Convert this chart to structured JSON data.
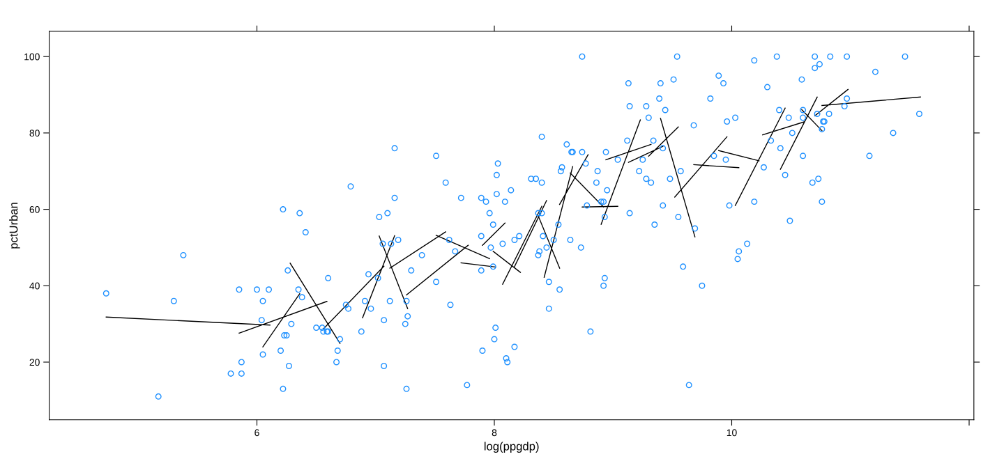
{
  "chart_data": {
    "type": "scatter",
    "xlabel": "log(ppgdp)",
    "ylabel": "pctUrban",
    "xlim": [
      4.25,
      12.04
    ],
    "xticks": [
      6,
      8,
      10,
      {
        "value": 12,
        "label": null
      }
    ],
    "ylim": [
      4.9,
      106.6
    ],
    "yticks": [
      20,
      40,
      60,
      80,
      100
    ],
    "grid": false,
    "legend": false,
    "marker": "circle",
    "series": [
      {
        "color": "#1e90ff",
        "x": [
          4.73,
          5.17,
          5.3,
          5.38,
          5.78,
          5.87,
          5.87,
          5.85,
          6.0,
          6.1,
          6.05,
          6.04,
          6.05,
          6.22,
          6.26,
          6.23,
          6.25,
          6.2,
          6.22,
          6.27,
          6.29,
          6.35,
          6.36,
          6.38,
          6.41,
          6.5,
          6.56,
          6.59,
          6.6,
          6.55,
          6.6,
          6.68,
          6.67,
          6.7,
          6.75,
          6.77,
          6.79,
          6.88,
          6.91,
          6.94,
          6.96,
          7.03,
          7.02,
          7.06,
          7.07,
          7.07,
          7.1,
          7.12,
          7.13,
          7.16,
          7.16,
          7.19,
          7.25,
          7.26,
          7.27,
          7.26,
          7.3,
          7.39,
          7.51,
          7.51,
          7.59,
          7.62,
          7.63,
          7.67,
          7.72,
          7.77,
          7.89,
          7.89,
          7.93,
          7.89,
          7.9,
          7.96,
          7.99,
          7.97,
          7.99,
          8.01,
          8.0,
          8.02,
          8.02,
          8.03,
          8.07,
          8.09,
          8.14,
          8.1,
          8.11,
          8.17,
          8.17,
          8.21,
          8.31,
          8.35,
          8.37,
          8.4,
          8.38,
          8.37,
          8.4,
          8.4,
          8.41,
          8.44,
          8.46,
          8.46,
          8.5,
          8.61,
          8.65,
          8.66,
          8.56,
          8.57,
          8.54,
          8.55,
          8.74,
          8.74,
          8.77,
          8.78,
          8.73,
          8.64,
          8.81,
          8.87,
          8.86,
          8.9,
          8.92,
          8.93,
          8.93,
          8.92,
          8.94,
          8.95,
          9.04,
          9.13,
          9.14,
          9.12,
          9.14,
          9.22,
          9.25,
          9.28,
          9.3,
          9.28,
          9.32,
          9.35,
          9.34,
          9.39,
          9.4,
          9.42,
          9.42,
          9.44,
          9.48,
          9.51,
          9.54,
          9.57,
          9.55,
          9.59,
          9.64,
          9.68,
          9.69,
          9.75,
          9.82,
          9.85,
          9.89,
          9.93,
          9.96,
          9.95,
          9.98,
          10.03,
          10.05,
          10.06,
          10.13,
          10.19,
          10.19,
          10.3,
          10.27,
          10.33,
          10.38,
          10.4,
          10.41,
          10.45,
          10.49,
          10.51,
          10.48,
          10.59,
          10.6,
          10.6,
          10.6,
          10.68,
          10.7,
          10.7,
          10.74,
          10.73,
          10.76,
          10.72,
          10.76,
          10.77,
          10.78,
          10.82,
          10.83,
          10.95,
          10.97,
          10.97,
          11.16,
          11.21,
          11.36,
          11.46,
          11.58
        ],
        "values": [
          38,
          11,
          36,
          48,
          17,
          20,
          17,
          39,
          39,
          39,
          36,
          31,
          22,
          60,
          44,
          27,
          27,
          23,
          13,
          19,
          30,
          39,
          59,
          37,
          54,
          29,
          28,
          28,
          28,
          29,
          42,
          23,
          20,
          26,
          35,
          34,
          66,
          28,
          36,
          43,
          34,
          58,
          42,
          51,
          19,
          31,
          59,
          36,
          51,
          76,
          63,
          52,
          30,
          36,
          32,
          13,
          44,
          48,
          74,
          41,
          67,
          52,
          35,
          49,
          63,
          14,
          53,
          63,
          62,
          44,
          23,
          59,
          56,
          50,
          45,
          29,
          26,
          64,
          69,
          72,
          51,
          62,
          65,
          21,
          20,
          24,
          52,
          53,
          68,
          68,
          59,
          59,
          49,
          48,
          67,
          79,
          53,
          50,
          41,
          34,
          52,
          77,
          75,
          75,
          70,
          71,
          56,
          39,
          100,
          75,
          72,
          61,
          50,
          52,
          28,
          70,
          67,
          62,
          62,
          58,
          42,
          40,
          75,
          65,
          73,
          93,
          87,
          78,
          59,
          70,
          73,
          87,
          84,
          68,
          67,
          56,
          78,
          89,
          93,
          76,
          61,
          86,
          68,
          94,
          100,
          70,
          58,
          45,
          14,
          82,
          55,
          40,
          89,
          74,
          95,
          93,
          83,
          73,
          61,
          84,
          47,
          49,
          51,
          99,
          62,
          92,
          71,
          78,
          100,
          86,
          76,
          69,
          57,
          80,
          84,
          94,
          84,
          86,
          74,
          67,
          100,
          97,
          98,
          68,
          62,
          85,
          81,
          83,
          83,
          85,
          100,
          87,
          89,
          100,
          74,
          96,
          80,
          100,
          85
        ]
      },
      {
        "type": "line",
        "color": "#000000",
        "marker": "none",
        "line_style": "solid",
        "x": [
          4.73,
          6.11,
          null,
          5.85,
          6.59,
          null,
          6.05,
          6.36,
          null,
          6.28,
          6.7,
          null,
          6.56,
          7.07,
          null,
          6.89,
          7.16,
          null,
          7.03,
          7.27,
          null,
          7.12,
          7.59,
          null,
          7.26,
          7.78,
          null,
          7.51,
          7.96,
          null,
          7.72,
          8.01,
          null,
          7.9,
          8.09,
          null,
          7.99,
          8.22,
          null,
          8.07,
          8.4,
          null,
          8.17,
          8.44,
          null,
          8.37,
          8.55,
          null,
          8.42,
          8.66,
          null,
          8.55,
          8.79,
          null,
          8.64,
          8.92,
          null,
          8.74,
          9.04,
          null,
          8.9,
          9.23,
          null,
          8.94,
          9.32,
          null,
          9.13,
          9.42,
          null,
          9.3,
          9.55,
          null,
          9.4,
          9.69,
          null,
          9.52,
          9.96,
          null,
          9.68,
          10.06,
          null,
          9.89,
          10.23,
          null,
          10.03,
          10.45,
          null,
          10.26,
          10.61,
          null,
          10.41,
          10.72,
          null,
          10.59,
          10.76,
          null,
          10.7,
          10.98,
          null,
          10.76,
          11.59
        ],
        "values": [
          31.8,
          29.7,
          null,
          27.6,
          35.9,
          null,
          24.0,
          37.9,
          null,
          45.9,
          24.9,
          null,
          28.7,
          45.1,
          null,
          31.6,
          53.1,
          null,
          53.0,
          34.0,
          null,
          44.6,
          54.1,
          null,
          37.6,
          50.6,
          null,
          53.2,
          47.1,
          null,
          46.0,
          44.9,
          null,
          50.6,
          56.4,
          null,
          49.0,
          43.5,
          null,
          40.4,
          60.8,
          null,
          45.0,
          62.3,
          null,
          58.3,
          44.6,
          null,
          42.2,
          71.2,
          null,
          61.3,
          74.3,
          null,
          69.5,
          60.6,
          null,
          60.6,
          60.8,
          null,
          56.1,
          83.4,
          null,
          73.0,
          77.0,
          null,
          72.3,
          76.5,
          null,
          73.9,
          81.6,
          null,
          83.8,
          52.8,
          null,
          63.2,
          79.0,
          null,
          71.7,
          70.9,
          null,
          75.4,
          72.7,
          null,
          61.0,
          86.5,
          null,
          79.5,
          82.9,
          null,
          70.5,
          89.4,
          null,
          86.1,
          80.6,
          null,
          84.5,
          91.4,
          null,
          87.2,
          89.4
        ]
      }
    ]
  }
}
